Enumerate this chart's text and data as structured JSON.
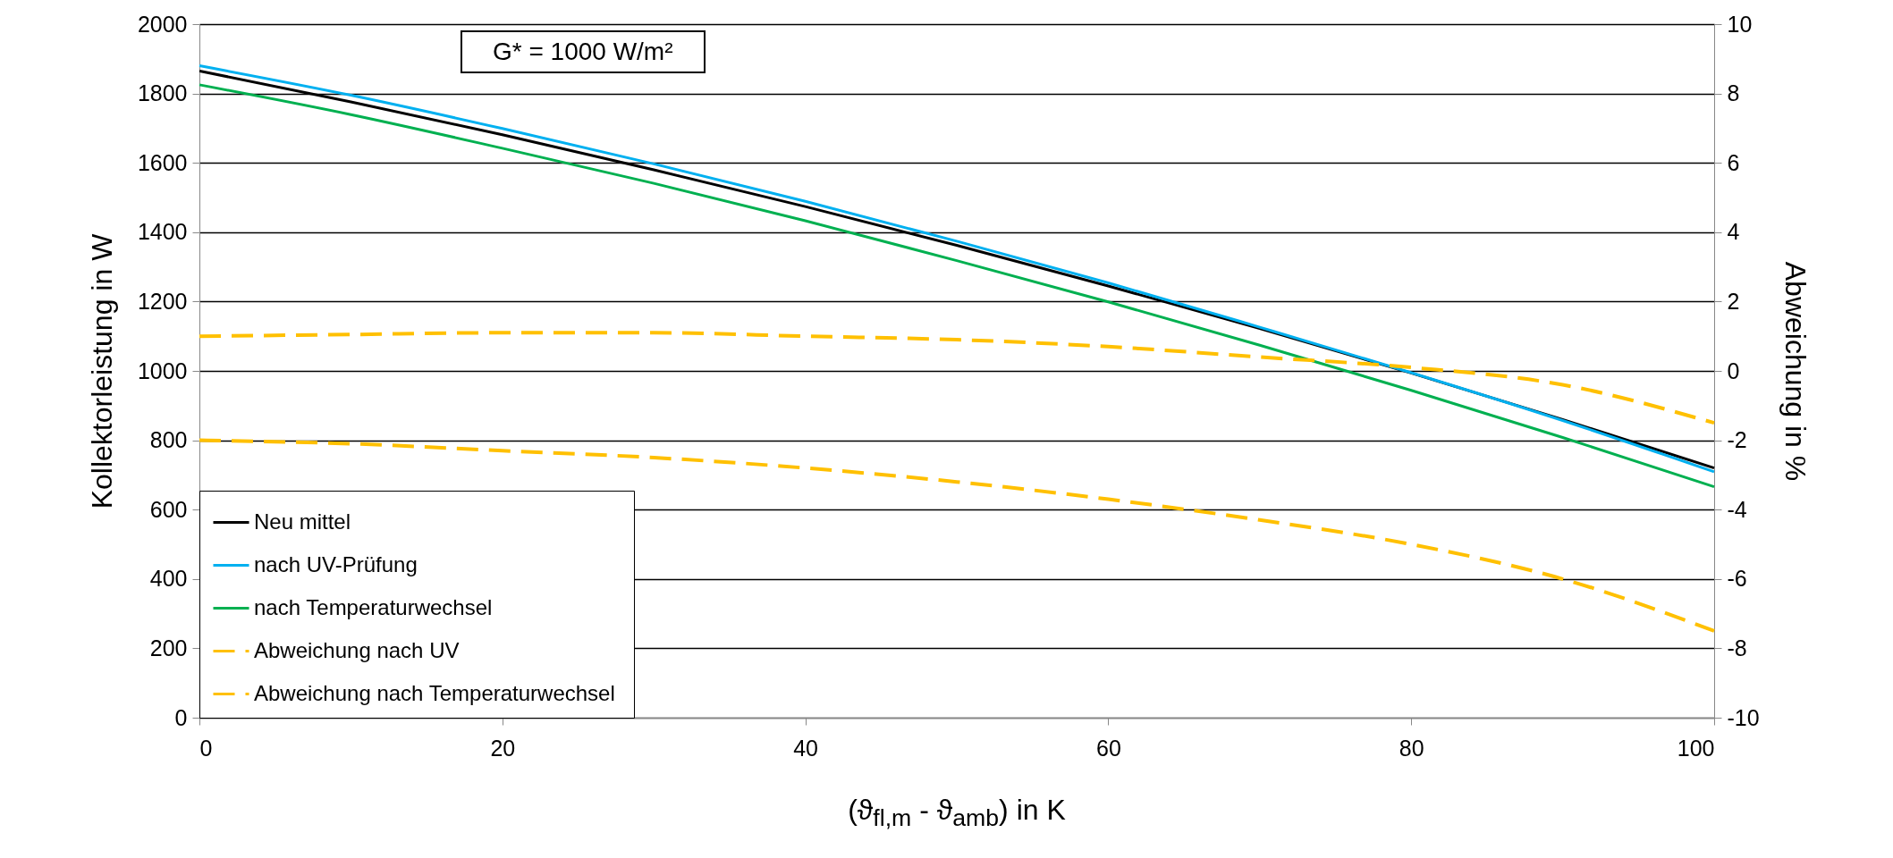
{
  "chart_data": {
    "type": "line",
    "xlabel": "(ϑ$_{fl,m}$ - ϑ$_{amb}$) in K",
    "ylabel": "Kollektorleistung in W",
    "y2label": "Abweichung in %",
    "annotations": [
      "G* = 1000 W/m²"
    ],
    "x": [
      0,
      10,
      20,
      30,
      40,
      50,
      60,
      70,
      80,
      90,
      100
    ],
    "series": [
      {
        "name": "Neu mittel",
        "color": "#000000",
        "line_style": "solid",
        "values": [
          1865,
          1776,
          1681,
          1580,
          1474,
          1362,
          1245,
          1122,
          994,
          860,
          720
        ]
      },
      {
        "name": "nach UV-Prüfung",
        "color": "#00b0f0",
        "line_style": "solid",
        "values": [
          1880,
          1795,
          1699,
          1597,
          1489,
          1374,
          1254,
          1126,
          995,
          857,
          709
        ]
      },
      {
        "name": "nach  Temperaturwechsel",
        "color": "#00b050",
        "line_style": "solid",
        "values": [
          1825,
          1739,
          1642,
          1541,
          1433,
          1318,
          1199,
          1074,
          944,
          808,
          666
        ]
      },
      {
        "name": "Abweichung nach UV",
        "color": "#ffc000",
        "line_style": "dashed",
        "axis": "y2",
        "values": [
          1.0,
          1.05,
          1.1,
          1.1,
          1.0,
          0.9,
          0.7,
          0.4,
          0.1,
          -0.4,
          -1.5
        ]
      },
      {
        "name": "Abweichung nach  Temperaturwechsel",
        "color": "#ffc000",
        "line_style": "dashed",
        "axis": "y2",
        "values": [
          -2.0,
          -2.1,
          -2.3,
          -2.5,
          -2.8,
          -3.2,
          -3.7,
          -4.3,
          -5.0,
          -6.0,
          -7.5
        ]
      }
    ],
    "xlim": [
      0,
      100
    ],
    "xticks": [
      0,
      20,
      40,
      60,
      80,
      100
    ],
    "ylim": [
      0,
      2000
    ],
    "yticks": [
      0,
      200,
      400,
      600,
      800,
      1000,
      1200,
      1400,
      1600,
      1800,
      2000
    ],
    "y2lim": [
      -10,
      10
    ],
    "y2ticks": [
      -10,
      -8,
      -6,
      -4,
      -2,
      0,
      2,
      4,
      6,
      8,
      10
    ],
    "grid": "y",
    "legend": "bottom left"
  }
}
